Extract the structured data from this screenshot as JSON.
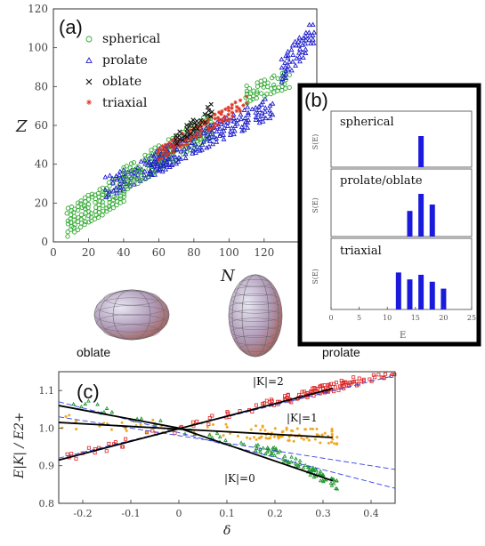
{
  "colors": {
    "spherical": "#33aa33",
    "prolate": "#1a1acc",
    "oblate": "#111111",
    "triaxial": "#dd3322",
    "k2": "#dd2222",
    "k1": "#eea722",
    "k0": "#229933",
    "bar": "#1a1adc",
    "fit": "#000000",
    "dashed": "#3344dd"
  },
  "chart_data": [
    {
      "panel": "(a)",
      "type": "scatter",
      "xlabel": "N",
      "ylabel": "Z",
      "xlim": [
        0,
        150
      ],
      "ylim": [
        0,
        120
      ],
      "xticks": [
        "0",
        "20",
        "40",
        "60",
        "80",
        "100",
        "120"
      ],
      "yticks": [
        "0",
        "20",
        "40",
        "60",
        "80",
        "100",
        "120"
      ],
      "legend_position": "top-left",
      "series": [
        {
          "name": "spherical",
          "marker": "circle-icon"
        },
        {
          "name": "prolate",
          "marker": "triangle-icon"
        },
        {
          "name": "oblate",
          "marker": "cross-icon"
        },
        {
          "name": "triaxial",
          "marker": "star-icon"
        }
      ],
      "bands": [
        {
          "series": "spherical",
          "n_range": [
            8,
            40
          ],
          "z_center": [
            10,
            28
          ],
          "width": 7
        },
        {
          "series": "prolate",
          "n_range": [
            30,
            70
          ],
          "z_center": [
            28,
            45
          ],
          "width": 5
        },
        {
          "series": "spherical",
          "n_range": [
            40,
            90
          ],
          "z_center": [
            32,
            60
          ],
          "width": 6
        },
        {
          "series": "prolate",
          "n_range": [
            55,
            125
          ],
          "z_center": [
            40,
            70
          ],
          "width": 5
        },
        {
          "series": "triaxial",
          "n_range": [
            60,
            110
          ],
          "z_center": [
            45,
            72
          ],
          "width": 3
        },
        {
          "series": "oblate",
          "n_range": [
            70,
            90
          ],
          "z_center": [
            52,
            68
          ],
          "width": 3
        },
        {
          "series": "spherical",
          "n_range": [
            110,
            135
          ],
          "z_center": [
            76,
            84
          ],
          "width": 4
        },
        {
          "series": "prolate",
          "n_range": [
            130,
            148
          ],
          "z_center": [
            88,
            108
          ],
          "width": 6
        }
      ],
      "images": [
        {
          "label": "oblate",
          "shape": "oblate-ellipsoid-icon"
        },
        {
          "label": "prolate",
          "shape": "prolate-ellipsoid-icon"
        }
      ]
    },
    {
      "panel": "(b)",
      "type": "bar",
      "xlabel": "E",
      "ylabel": "S(E)",
      "xlim": [
        0,
        25
      ],
      "xticks": [
        "0",
        "5",
        "10",
        "15",
        "20",
        "25"
      ],
      "subplots": [
        {
          "title": "spherical",
          "x": [
            16
          ],
          "values": [
            1.0
          ]
        },
        {
          "title": "prolate/oblate",
          "x": [
            14,
            16,
            18
          ],
          "values": [
            0.6,
            1.0,
            0.75
          ]
        },
        {
          "title": "triaxial",
          "x": [
            12,
            14,
            16,
            18,
            20
          ],
          "values": [
            0.8,
            0.65,
            0.75,
            0.6,
            0.45
          ]
        }
      ]
    },
    {
      "panel": "(c)",
      "type": "scatter",
      "xlabel": "δ",
      "ylabel": "E|K| / E2+",
      "xlim": [
        -0.25,
        0.45
      ],
      "ylim": [
        0.8,
        1.15
      ],
      "xticks": [
        "-0.2",
        "-0.1",
        "0",
        "0.1",
        "0.2",
        "0.3",
        "0.4"
      ],
      "yticks": [
        "0.8",
        "0.9",
        "1.0",
        "1.1"
      ],
      "annotations": [
        "|K|=2",
        "|K|=1",
        "|K|=0"
      ],
      "series": [
        {
          "name": "|K|=2",
          "marker": "square-icon",
          "slope": 0.34,
          "x_range": [
            -0.25,
            0.45
          ]
        },
        {
          "name": "|K|=1",
          "marker": "star-icon",
          "slope": -0.07,
          "x_range": [
            -0.25,
            0.34
          ]
        },
        {
          "name": "|K|=0",
          "marker": "triangle-icon",
          "slope": -0.32,
          "x_range": [
            -0.25,
            0.33
          ]
        }
      ],
      "fits": [
        {
          "series": "|K|=2",
          "x": [
            -0.25,
            0.32
          ],
          "y": [
            0.915,
            1.105
          ]
        },
        {
          "series": "|K|=1",
          "x": [
            -0.25,
            0.32
          ],
          "y": [
            1.015,
            0.975
          ]
        },
        {
          "series": "|K|=0",
          "x": [
            -0.25,
            0.0,
            0.32
          ],
          "y": [
            1.06,
            1.0,
            0.86
          ]
        }
      ],
      "dashed": [
        {
          "x": [
            -0.25,
            0.45
          ],
          "y": [
            0.92,
            1.14
          ]
        },
        {
          "x": [
            -0.25,
            0.45
          ],
          "y": [
            1.03,
            0.89
          ]
        },
        {
          "x": [
            -0.25,
            0.45
          ],
          "y": [
            1.07,
            0.84
          ]
        }
      ]
    }
  ]
}
